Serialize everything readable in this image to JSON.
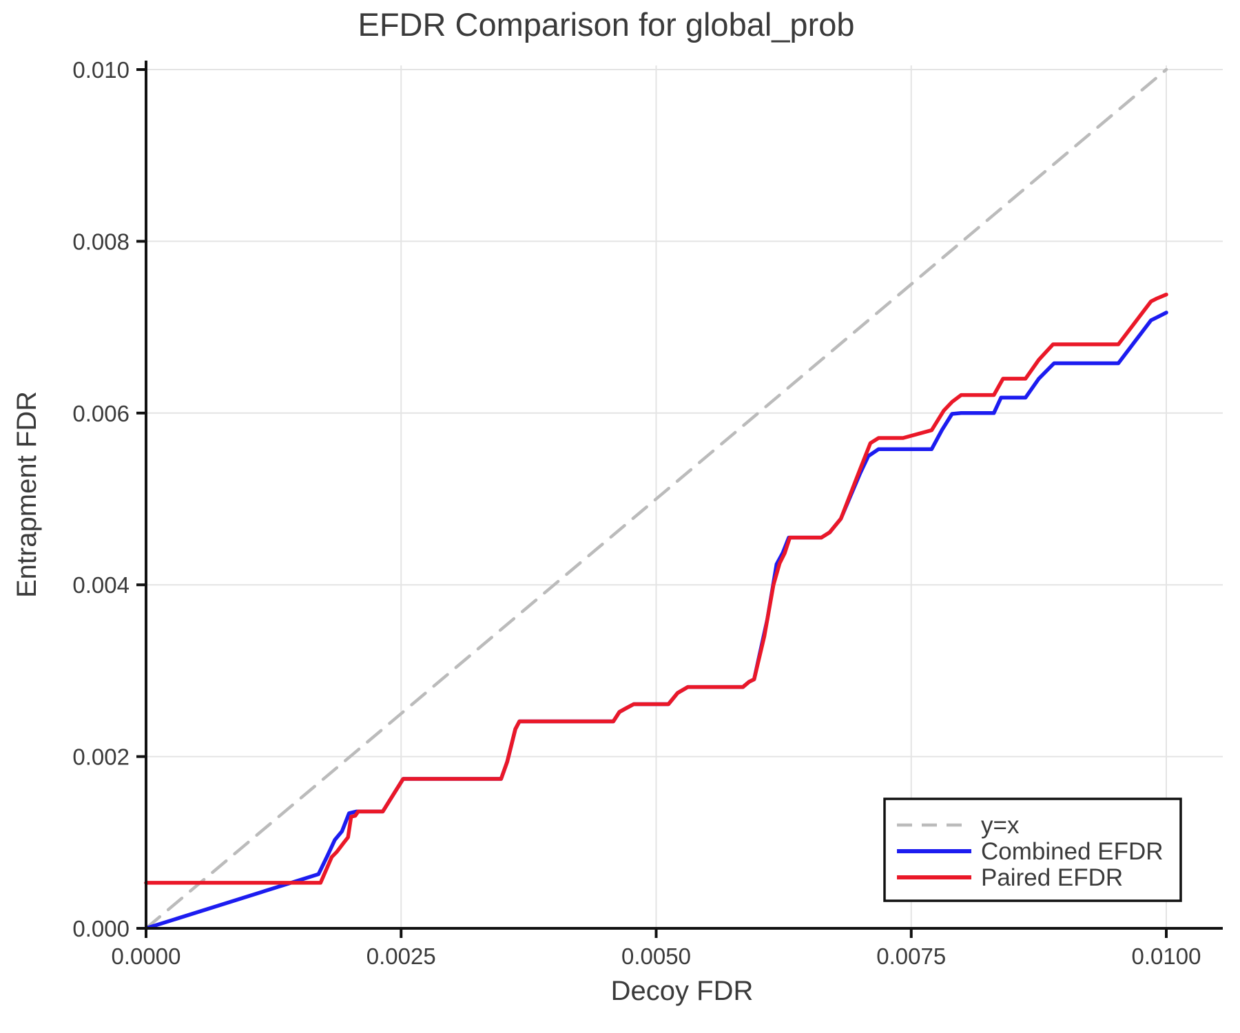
{
  "title": "EFDR Comparison for global_prob",
  "axes": {
    "x_label": "Decoy FDR",
    "y_label": "Entrapment FDR",
    "x_tick_labels": [
      "0.0000",
      "0.0025",
      "0.0050",
      "0.0075",
      "0.0100"
    ],
    "x_tick_values": [
      0.0,
      0.0025,
      0.005,
      0.0075,
      0.01
    ],
    "y_tick_labels": [
      "0.000",
      "0.002",
      "0.004",
      "0.006",
      "0.008",
      "0.010"
    ],
    "y_tick_values": [
      0.0,
      0.002,
      0.004,
      0.006,
      0.008,
      0.01
    ],
    "x_range": [
      0.0,
      0.0105
    ],
    "y_range": [
      0.0,
      0.0102
    ],
    "grid": true
  },
  "colors": {
    "identity_line": "#bbbbbb",
    "combined": "#1c1cf0",
    "paired": "#ea1828",
    "gridline": "#e4e4e4",
    "spine": "#111111",
    "text": "#3a3a3a",
    "legend_border": "#111111",
    "legend_bg": "#ffffff"
  },
  "legend": {
    "position": "bottom-right",
    "items": [
      {
        "label": "y=x",
        "dashed": true
      },
      {
        "label": "Combined EFDR",
        "dashed": false
      },
      {
        "label": "Paired EFDR",
        "dashed": false
      }
    ]
  },
  "chart_data": {
    "type": "line",
    "title": "EFDR Comparison for global_prob",
    "xlabel": "Decoy FDR",
    "ylabel": "Entrapment FDR",
    "xlim": [
      0.0,
      0.0105
    ],
    "ylim": [
      0.0,
      0.0102
    ],
    "legend_position": "bottom-right",
    "grid": true,
    "series": [
      {
        "name": "y=x",
        "color": "#bbbbbb",
        "style": "dashed",
        "width": 4.5,
        "points": [
          [
            0.0,
            0.0
          ],
          [
            0.01,
            0.01
          ]
        ]
      },
      {
        "name": "Combined EFDR",
        "color": "#1c1cf0",
        "style": "solid",
        "width": 5.5,
        "points": [
          [
            0.0,
            0.0
          ],
          [
            0.00169,
            0.00063
          ],
          [
            0.00178,
            0.00085
          ],
          [
            0.00185,
            0.00103
          ],
          [
            0.00192,
            0.00113
          ],
          [
            0.00199,
            0.00134
          ],
          [
            0.00206,
            0.00136
          ],
          [
            0.00232,
            0.00136
          ],
          [
            0.00242,
            0.00155
          ],
          [
            0.00252,
            0.00174
          ],
          [
            0.00348,
            0.00174
          ],
          [
            0.00354,
            0.00194
          ],
          [
            0.00362,
            0.00232
          ],
          [
            0.00366,
            0.00241
          ],
          [
            0.00458,
            0.00241
          ],
          [
            0.00464,
            0.00252
          ],
          [
            0.0047,
            0.00256
          ],
          [
            0.00478,
            0.00261
          ],
          [
            0.00512,
            0.00261
          ],
          [
            0.00521,
            0.00274
          ],
          [
            0.00531,
            0.00281
          ],
          [
            0.00585,
            0.00281
          ],
          [
            0.00591,
            0.00287
          ],
          [
            0.00596,
            0.0029
          ],
          [
            0.00609,
            0.0036
          ],
          [
            0.00618,
            0.00424
          ],
          [
            0.00624,
            0.00437
          ],
          [
            0.0063,
            0.00455
          ],
          [
            0.00662,
            0.00455
          ],
          [
            0.0067,
            0.00461
          ],
          [
            0.00681,
            0.00477
          ],
          [
            0.007,
            0.0053
          ],
          [
            0.00708,
            0.0055
          ],
          [
            0.00718,
            0.00558
          ],
          [
            0.0077,
            0.00558
          ],
          [
            0.0078,
            0.0058
          ],
          [
            0.0079,
            0.00599
          ],
          [
            0.00799,
            0.006
          ],
          [
            0.00831,
            0.006
          ],
          [
            0.00838,
            0.00618
          ],
          [
            0.00862,
            0.00618
          ],
          [
            0.00875,
            0.0064
          ],
          [
            0.0089,
            0.00658
          ],
          [
            0.00953,
            0.00658
          ],
          [
            0.00985,
            0.00708
          ],
          [
            0.0099,
            0.00711
          ],
          [
            0.01,
            0.00717
          ]
        ]
      },
      {
        "name": "Paired EFDR",
        "color": "#ea1828",
        "style": "solid",
        "width": 5.5,
        "points": [
          [
            0.0,
            0.00053
          ],
          [
            0.00171,
            0.00053
          ],
          [
            0.00178,
            0.00072
          ],
          [
            0.00182,
            0.00083
          ],
          [
            0.00187,
            0.00089
          ],
          [
            0.00194,
            0.001
          ],
          [
            0.00198,
            0.00106
          ],
          [
            0.002,
            0.00122
          ],
          [
            0.00201,
            0.0013
          ],
          [
            0.00205,
            0.00131
          ],
          [
            0.00208,
            0.00136
          ],
          [
            0.00232,
            0.00136
          ],
          [
            0.00242,
            0.00155
          ],
          [
            0.00252,
            0.00174
          ],
          [
            0.00348,
            0.00174
          ],
          [
            0.00354,
            0.00194
          ],
          [
            0.00362,
            0.00232
          ],
          [
            0.00366,
            0.00241
          ],
          [
            0.00458,
            0.00241
          ],
          [
            0.00464,
            0.00252
          ],
          [
            0.0047,
            0.00256
          ],
          [
            0.00478,
            0.00261
          ],
          [
            0.00512,
            0.00261
          ],
          [
            0.00521,
            0.00274
          ],
          [
            0.00531,
            0.00281
          ],
          [
            0.00585,
            0.00281
          ],
          [
            0.00591,
            0.00287
          ],
          [
            0.00596,
            0.0029
          ],
          [
            0.00606,
            0.0034
          ],
          [
            0.00615,
            0.004
          ],
          [
            0.00621,
            0.00425
          ],
          [
            0.00626,
            0.00437
          ],
          [
            0.00631,
            0.00455
          ],
          [
            0.00662,
            0.00455
          ],
          [
            0.0067,
            0.00461
          ],
          [
            0.00681,
            0.00477
          ],
          [
            0.007,
            0.00535
          ],
          [
            0.0071,
            0.00565
          ],
          [
            0.00718,
            0.00571
          ],
          [
            0.00742,
            0.00571
          ],
          [
            0.0077,
            0.0058
          ],
          [
            0.00782,
            0.00603
          ],
          [
            0.0079,
            0.00613
          ],
          [
            0.00799,
            0.00621
          ],
          [
            0.00831,
            0.00621
          ],
          [
            0.0084,
            0.0064
          ],
          [
            0.00862,
            0.0064
          ],
          [
            0.00875,
            0.00662
          ],
          [
            0.00889,
            0.0068
          ],
          [
            0.00953,
            0.0068
          ],
          [
            0.00985,
            0.0073
          ],
          [
            0.0099,
            0.00733
          ],
          [
            0.01,
            0.00738
          ]
        ]
      }
    ]
  }
}
